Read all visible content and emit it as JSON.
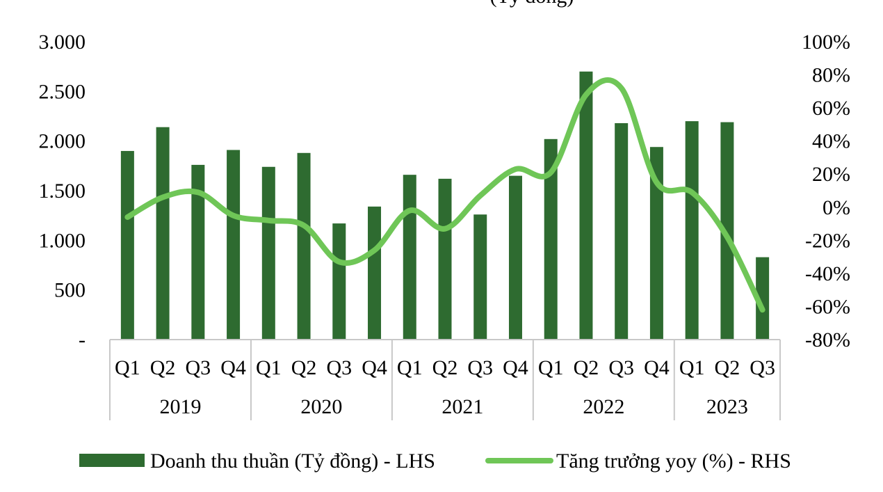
{
  "chart_data": {
    "type": "bar",
    "title": "(Tỷ đồng)",
    "categories": [
      "Q1",
      "Q2",
      "Q3",
      "Q4",
      "Q1",
      "Q2",
      "Q3",
      "Q4",
      "Q1",
      "Q2",
      "Q3",
      "Q4",
      "Q1",
      "Q2",
      "Q3",
      "Q4",
      "Q1",
      "Q2",
      "Q3"
    ],
    "groups": [
      {
        "label": "2019",
        "count": 4
      },
      {
        "label": "2020",
        "count": 4
      },
      {
        "label": "2021",
        "count": 4
      },
      {
        "label": "2022",
        "count": 4
      },
      {
        "label": "2023",
        "count": 3
      }
    ],
    "series": [
      {
        "name": "Doanh thu thuần (Tỷ đồng) - LHS",
        "type": "bar",
        "axis": "left",
        "color": "#2e6b30",
        "values": [
          1900,
          2140,
          1760,
          1910,
          1740,
          1880,
          1170,
          1340,
          1660,
          1620,
          1260,
          1650,
          2020,
          2700,
          2180,
          1940,
          2200,
          2190,
          830
        ]
      },
      {
        "name": "Tăng trưởng yoy (%) - RHS",
        "type": "line",
        "axis": "right",
        "color": "#6fc657",
        "values": [
          -6,
          6,
          9,
          -5,
          -8,
          -11,
          -33,
          -26,
          -2,
          -13,
          7,
          23,
          21,
          68,
          72,
          15,
          9,
          -18,
          -62
        ]
      }
    ],
    "y_left": {
      "ylim": [
        0,
        3000
      ],
      "ticks": [
        0,
        500,
        1000,
        1500,
        2000,
        2500,
        3000
      ],
      "tick_labels": [
        "-",
        "500",
        "1.000",
        "1.500",
        "2.000",
        "2.500",
        "3.000"
      ]
    },
    "y_right": {
      "ylim": [
        -80,
        100
      ],
      "ticks": [
        -80,
        -60,
        -40,
        -20,
        0,
        20,
        40,
        60,
        80,
        100
      ],
      "tick_labels": [
        "-80%",
        "-60%",
        "-40%",
        "-20%",
        "0%",
        "20%",
        "40%",
        "60%",
        "80%",
        "100%"
      ]
    },
    "grid": false,
    "legend": "bottom"
  }
}
